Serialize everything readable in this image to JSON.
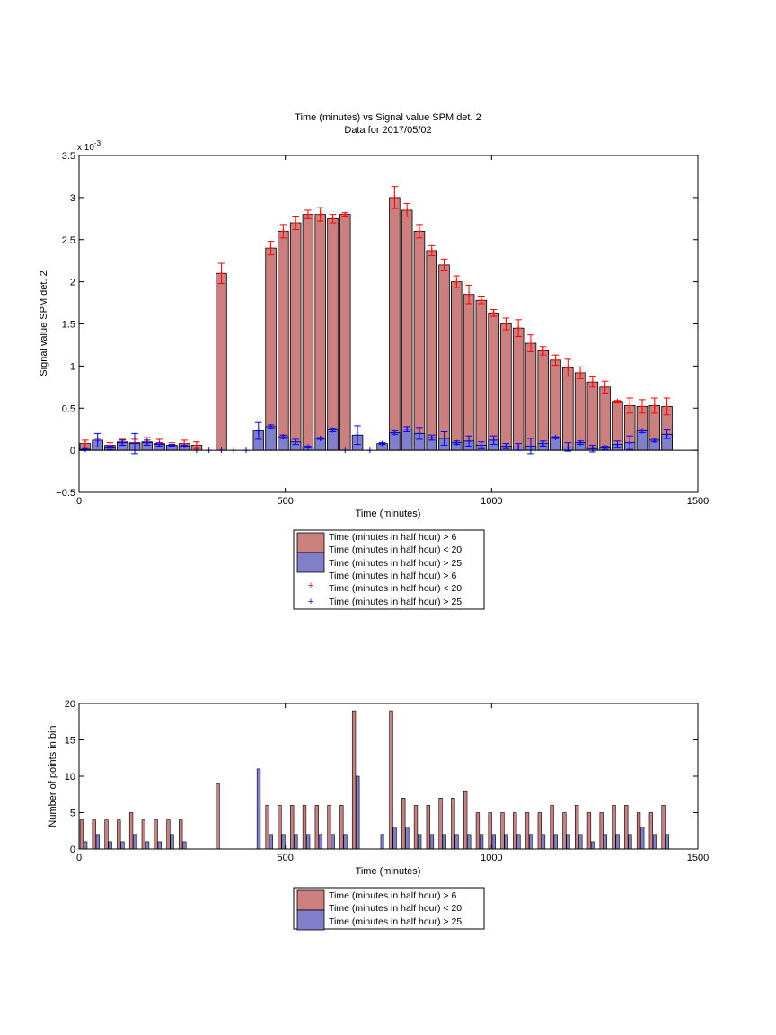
{
  "chart_data": [
    {
      "type": "bar",
      "title": "Time (minutes) vs Signal value SPM det. 2",
      "subtitle": "Data for 2017/05/02",
      "xlabel": "Time (minutes)",
      "ylabel": "Signal value SPM det. 2",
      "exponent_label": "x 10",
      "exponent_power": "-3",
      "xlim": [
        0,
        1500
      ],
      "ylim": [
        -0.0005,
        0.0035
      ],
      "xticks": [
        "0",
        "500",
        "1000",
        "1500"
      ],
      "yticks": [
        "−0.5",
        "0",
        "0.5",
        "1",
        "1.5",
        "2",
        "2.5",
        "3",
        "3.5"
      ],
      "grid": false,
      "legend_position": "below",
      "legend": [
        "Time (minutes in half hour) > 6",
        "Time (minutes in half hour) < 20",
        "Time (minutes in half hour) > 25",
        "Time (minutes in half hour) > 6",
        "Time (minutes in half hour) < 20",
        "Time (minutes in half hour) > 25"
      ],
      "x": [
        15,
        45,
        75,
        105,
        135,
        165,
        195,
        225,
        255,
        285,
        315,
        345,
        375,
        405,
        435,
        465,
        495,
        525,
        555,
        585,
        615,
        645,
        675,
        705,
        735,
        765,
        795,
        825,
        855,
        885,
        915,
        945,
        975,
        1005,
        1035,
        1065,
        1095,
        1125,
        1155,
        1185,
        1215,
        1245,
        1275,
        1305,
        1335,
        1365,
        1395,
        1425
      ],
      "series": [
        {
          "color": "#cc7f7f",
          "marker_color": "#ff0000",
          "values": [
            8e-05,
            0.0001,
            6e-05,
            0.0001,
            9e-05,
            0.0001,
            8e-05,
            5e-05,
            8e-05,
            6e-05,
            null,
            0.0021,
            null,
            null,
            null,
            0.0024,
            0.0026,
            0.0027,
            0.0028,
            0.0028,
            0.00275,
            0.0028,
            null,
            null,
            null,
            0.003,
            0.00285,
            0.0026,
            0.00237,
            0.0022,
            0.002,
            0.00185,
            0.00178,
            0.00163,
            0.0015,
            0.00145,
            0.00127,
            0.00118,
            0.00107,
            0.00098,
            0.00092,
            0.00081,
            0.00075,
            0.00058,
            0.00053,
            0.00052,
            0.00053,
            0.00052
          ],
          "errors": [
            4e-05,
            4e-05,
            3e-05,
            3e-05,
            4e-05,
            5e-05,
            5e-05,
            4e-05,
            4e-05,
            4e-05,
            null,
            0.00012,
            null,
            null,
            null,
            8e-05,
            8e-05,
            8e-05,
            5e-05,
            8e-05,
            5e-05,
            2e-05,
            null,
            null,
            null,
            0.00013,
            8e-05,
            8e-05,
            6e-05,
            7e-05,
            7e-05,
            0.00011,
            4e-05,
            4e-05,
            7e-05,
            0.0001,
            0.0001,
            5e-05,
            6e-05,
            0.0001,
            7e-05,
            6e-05,
            7e-05,
            1e-05,
            9e-05,
            8e-05,
            9e-05,
            0.0001
          ]
        },
        {
          "color": "#7f7fcc",
          "marker_color": "#0000ff",
          "values": [
            1e-05,
            0.00012,
            3e-05,
            9e-05,
            8e-05,
            9e-05,
            7e-05,
            6e-05,
            5e-05,
            0.0,
            0.0,
            0.0,
            0.0,
            0.0,
            0.00023,
            0.00028,
            0.00016,
            0.0001,
            4e-05,
            0.00014,
            0.00024,
            0.0,
            0.00018,
            0.0,
            8e-05,
            0.00021,
            0.00025,
            0.0002,
            0.00015,
            0.00014,
            9e-05,
            0.00011,
            6e-05,
            0.00012,
            5e-05,
            4e-05,
            5e-05,
            8e-05,
            0.00015,
            4e-05,
            9e-05,
            2e-05,
            3e-05,
            7e-05,
            9e-05,
            0.00023,
            0.00012,
            0.00019
          ],
          "errors": [
            1e-05,
            8e-05,
            2e-05,
            3e-05,
            0.00012,
            3e-05,
            2e-05,
            1e-05,
            1e-05,
            0.0,
            0.0,
            0.0,
            0.0,
            0.0,
            0.0001,
            2e-05,
            2e-05,
            3e-05,
            1e-05,
            1e-05,
            2e-05,
            0.0,
            0.00011,
            0.0,
            1e-05,
            2e-05,
            3e-05,
            7e-05,
            3e-05,
            8e-05,
            2e-05,
            6e-05,
            4e-05,
            5e-05,
            3e-05,
            4e-05,
            9e-05,
            3e-05,
            1e-05,
            5e-05,
            2e-05,
            4e-05,
            2e-05,
            4e-05,
            8e-05,
            2e-05,
            2e-05,
            5e-05
          ]
        }
      ]
    },
    {
      "type": "bar",
      "xlabel": "Time (minutes)",
      "ylabel": "Number of points in bin",
      "xlim": [
        0,
        1500
      ],
      "ylim": [
        0,
        20
      ],
      "xticks": [
        "0",
        "500",
        "1000",
        "1500"
      ],
      "yticks": [
        "0",
        "5",
        "10",
        "15",
        "20"
      ],
      "grid": false,
      "legend_position": "below",
      "legend": [
        "Time (minutes in half hour) > 6",
        "Time (minutes in half hour) < 20",
        "Time (minutes in half hour) > 25"
      ],
      "x": [
        15,
        45,
        75,
        105,
        135,
        165,
        195,
        225,
        255,
        285,
        315,
        345,
        375,
        405,
        435,
        465,
        495,
        525,
        555,
        585,
        615,
        645,
        675,
        705,
        735,
        765,
        795,
        825,
        855,
        885,
        915,
        945,
        975,
        1005,
        1035,
        1065,
        1095,
        1125,
        1155,
        1185,
        1215,
        1245,
        1275,
        1305,
        1335,
        1365,
        1395,
        1425
      ],
      "series": [
        {
          "color": "#cc7f7f",
          "values": [
            4,
            4,
            4,
            4,
            5,
            4,
            4,
            4,
            4,
            0,
            0,
            9,
            0,
            0,
            0,
            6,
            6,
            6,
            6,
            6,
            6,
            6,
            19,
            0,
            0,
            19,
            7,
            6,
            6,
            7,
            7,
            8,
            5,
            5,
            5,
            5,
            5,
            5,
            6,
            5,
            6,
            5,
            5,
            6,
            6,
            5,
            5,
            6
          ]
        },
        {
          "color": "#7f7fcc",
          "values": [
            1,
            2,
            1,
            1,
            2,
            1,
            1,
            2,
            1,
            0,
            0,
            0,
            0,
            0,
            11,
            2,
            2,
            2,
            2,
            2,
            2,
            2,
            10,
            0,
            2,
            3,
            3,
            2,
            2,
            2,
            2,
            2,
            2,
            2,
            2,
            2,
            2,
            2,
            2,
            2,
            2,
            1,
            2,
            2,
            2,
            3,
            2,
            2
          ]
        }
      ]
    }
  ]
}
